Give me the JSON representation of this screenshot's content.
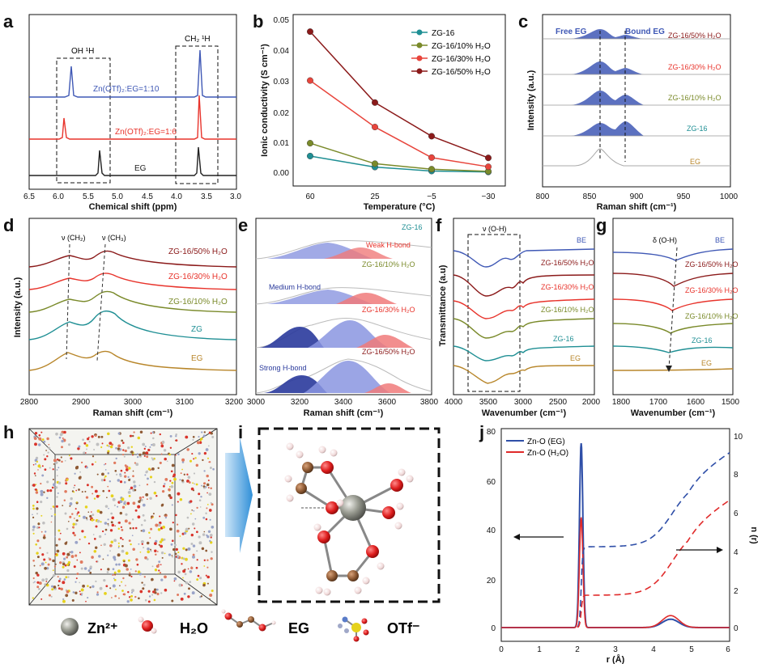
{
  "figure": {
    "panel_labels": [
      "a",
      "b",
      "c",
      "d",
      "e",
      "f",
      "g",
      "h",
      "i",
      "j"
    ]
  },
  "panels": {
    "a": {
      "xlabel": "Chemical shift (ppm)",
      "ticks": [
        "6.5",
        "6.0",
        "5.5",
        "5.0",
        "4.5",
        "4.0",
        "3.5",
        "3.0"
      ],
      "box_oh": "OH ¹H",
      "box_ch2": "CH₂ ¹H",
      "labels": [
        "Zn(OTf)₂:EG=1:10",
        "Zn(OTf)₂:EG=1:6",
        "EG"
      ],
      "colors": [
        "#3f58b5",
        "#e8342c",
        "#222222"
      ]
    },
    "b": {
      "xlabel": "Temperature (°C)",
      "ylabel": "Ionic conductivity (S cm⁻¹)",
      "xticks": [
        "60",
        "25",
        "−5",
        "−30"
      ],
      "yticks": [
        "0.00",
        "0.01",
        "0.02",
        "0.03",
        "0.04",
        "0.05"
      ],
      "legend": [
        "ZG-16",
        "ZG-16/10% H₂O",
        "ZG-16/30% H₂O",
        "ZG-16/50% H₂O"
      ]
    },
    "c": {
      "xlabel": "Raman shift (cm⁻¹)",
      "ylabel": "Intensity (a.u.)",
      "xticks": [
        "800",
        "850",
        "900",
        "950",
        "1000"
      ],
      "free": "Free EG",
      "bound": "Bound EG",
      "labels": [
        "ZG-16/50% H₂O",
        "ZG-16/30% H₂O",
        "ZG-16/10% H₂O",
        "ZG-16",
        "EG"
      ]
    },
    "d": {
      "xlabel": "Raman shift (cm⁻¹)",
      "ylabel": "Intensity (a.u.)",
      "xticks": [
        "2800",
        "2900",
        "3000",
        "3100",
        "3200"
      ],
      "nu_ch2": "ν (CH₂)",
      "nu_ch3": "ν (CH₃)",
      "labels": [
        "ZG-16/50% H₂O",
        "ZG-16/30% H₂O",
        "ZG-16/10% H₂O",
        "ZG",
        "EG"
      ]
    },
    "e": {
      "xlabel": "Raman shift (cm⁻¹)",
      "xticks": [
        "3000",
        "3200",
        "3400",
        "3600",
        "3800"
      ],
      "labels": [
        "ZG-16",
        "ZG-16/10% H₂O",
        "ZG-16/30% H₂O",
        "ZG-16/50% H₂O"
      ],
      "weak": "Weak H-bond",
      "medium": "Medium H-bond",
      "strong": "Strong H-bond"
    },
    "f": {
      "xlabel": "Wavenumber (cm⁻¹)",
      "ylabel": "Transmittance (a.u)",
      "xticks": [
        "4000",
        "3500",
        "3000",
        "2500",
        "2000"
      ],
      "nu_oh": "ν (O-H)",
      "labels": [
        "BE",
        "ZG-16/50% H₂O",
        "ZG-16/30% H₂O",
        "ZG-16/10% H₂O",
        "ZG-16",
        "EG"
      ]
    },
    "g": {
      "xlabel": "Wavenumber (cm⁻¹)",
      "xticks": [
        "1800",
        "1700",
        "1600",
        "1500"
      ],
      "delta_oh": "δ (O-H)",
      "labels": [
        "BE",
        "ZG-16/50% H₂O",
        "ZG-16/30% H₂O",
        "ZG-16/10% H₂O",
        "ZG-16",
        "EG"
      ]
    },
    "legend_hi": {
      "zn": "Zn²⁺",
      "h2o": "H₂O",
      "eg": "EG",
      "otf": "OTf⁻"
    },
    "j": {
      "xlabel": "r (Å)",
      "ylabel_right": "n (r)",
      "xticks": [
        "0",
        "1",
        "2",
        "3",
        "4",
        "5",
        "6"
      ],
      "yticks_left": [
        "0",
        "20",
        "40",
        "60",
        "80"
      ],
      "yticks_right": [
        "0",
        "2",
        "4",
        "6",
        "8",
        "10"
      ],
      "legend": [
        "Zn-O (EG)",
        "Zn-O (H₂O)"
      ]
    }
  },
  "chart_data": [
    {
      "panel": "b",
      "type": "line",
      "xlabel": "Temperature (°C)",
      "ylabel": "Ionic conductivity (S cm⁻¹)",
      "categories": [
        "60",
        "25",
        "−5",
        "−30"
      ],
      "ylim": [
        -0.003,
        0.05
      ],
      "series": [
        {
          "name": "ZG-16",
          "color": "#1f8f94",
          "values": [
            0.0053,
            0.0017,
            0.0004,
            0.0001
          ]
        },
        {
          "name": "ZG-16/10% H₂O",
          "color": "#7a8a2a",
          "values": [
            0.0095,
            0.0028,
            0.001,
            0.0003
          ]
        },
        {
          "name": "ZG-16/30% H₂O",
          "color": "#e8453c",
          "values": [
            0.03,
            0.0148,
            0.0048,
            0.0018
          ]
        },
        {
          "name": "ZG-16/50% H₂O",
          "color": "#8b1a1a",
          "values": [
            0.046,
            0.0228,
            0.0118,
            0.0047
          ]
        }
      ]
    },
    {
      "panel": "j",
      "type": "line",
      "xlabel": "r (Å)",
      "xlim": [
        0,
        6
      ],
      "ylim": [
        -5,
        85
      ],
      "series": [
        {
          "name": "Zn-O (EG)",
          "color": "#2f4fa8"
        },
        {
          "name": "Zn-O (H₂O)",
          "color": "#e02a2a"
        }
      ]
    }
  ]
}
